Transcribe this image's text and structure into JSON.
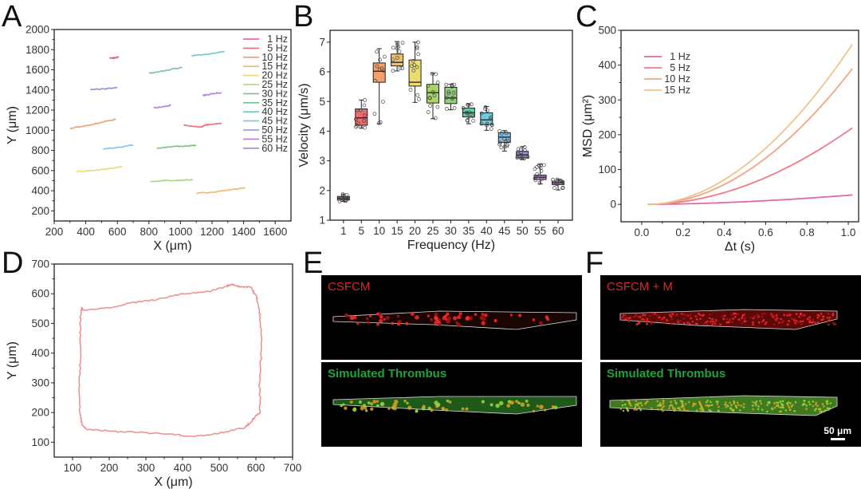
{
  "panels": {
    "A": "A",
    "B": "B",
    "C": "C",
    "D": "D",
    "E": "E",
    "F": "F"
  },
  "chart_data": [
    {
      "id": "A",
      "type": "line",
      "title": "",
      "xlabel": "X (μm)",
      "ylabel": "Y (μm)",
      "xlim": [
        200,
        1700
      ],
      "ylim": [
        100,
        2000
      ],
      "xticks": [
        200,
        400,
        600,
        800,
        1000,
        1200,
        1400,
        1600
      ],
      "yticks": [
        200,
        400,
        600,
        800,
        1000,
        1200,
        1400,
        1600,
        1800,
        2000
      ],
      "legend_position": "top-right",
      "series": [
        {
          "name": "1 Hz",
          "color": "#e0559a",
          "points": [
            [
              550,
              1715
            ],
            [
              580,
              1718
            ],
            [
              610,
              1728
            ]
          ]
        },
        {
          "name": "5 Hz",
          "color": "#ef6f79",
          "points": [
            [
              1020,
              1050
            ],
            [
              1080,
              1040
            ],
            [
              1130,
              1030
            ],
            [
              1150,
              1050
            ],
            [
              1200,
              1060
            ],
            [
              1260,
              1065
            ]
          ]
        },
        {
          "name": "10 Hz",
          "color": "#f09c6d",
          "points": [
            [
              300,
              1020
            ],
            [
              400,
              1045
            ],
            [
              500,
              1080
            ],
            [
              590,
              1110
            ]
          ]
        },
        {
          "name": "15 Hz",
          "color": "#f0b86a",
          "points": [
            [
              1100,
              375
            ],
            [
              1200,
              385
            ],
            [
              1300,
              405
            ],
            [
              1410,
              430
            ]
          ]
        },
        {
          "name": "20 Hz",
          "color": "#e7d978",
          "points": [
            [
              340,
              590
            ],
            [
              450,
              600
            ],
            [
              550,
              620
            ],
            [
              630,
              640
            ]
          ]
        },
        {
          "name": "25 Hz",
          "color": "#a8d67c",
          "points": [
            [
              810,
              490
            ],
            [
              900,
              500
            ],
            [
              1000,
              505
            ],
            [
              1080,
              510
            ]
          ]
        },
        {
          "name": "30 Hz",
          "color": "#7dc47a",
          "points": [
            [
              850,
              820
            ],
            [
              950,
              840
            ],
            [
              1050,
              845
            ],
            [
              1100,
              850
            ]
          ]
        },
        {
          "name": "35 Hz",
          "color": "#6cc4a3",
          "points": [
            [
              800,
              1565
            ],
            [
              900,
              1590
            ],
            [
              1010,
              1625
            ]
          ]
        },
        {
          "name": "40 Hz",
          "color": "#6ac7d1",
          "points": [
            [
              1070,
              1740
            ],
            [
              1170,
              1755
            ],
            [
              1280,
              1780
            ]
          ]
        },
        {
          "name": "45 Hz",
          "color": "#7fc2ea",
          "points": [
            [
              510,
              815
            ],
            [
              600,
              830
            ],
            [
              700,
              855
            ]
          ]
        },
        {
          "name": "50 Hz",
          "color": "#8b93d1",
          "points": [
            [
              430,
              1405
            ],
            [
              520,
              1410
            ],
            [
              600,
              1425
            ]
          ]
        },
        {
          "name": "55 Hz",
          "color": "#b57ed6",
          "points": [
            [
              830,
              1225
            ],
            [
              900,
              1235
            ],
            [
              940,
              1250
            ]
          ]
        },
        {
          "name": "60 Hz",
          "color": "#b57ed6",
          "points": [
            [
              1140,
              1345
            ],
            [
              1200,
              1360
            ],
            [
              1260,
              1375
            ]
          ]
        }
      ]
    },
    {
      "id": "B",
      "type": "box",
      "xlabel": "Frequency (Hz)",
      "ylabel": "Velocity (μm/s)",
      "ylim": [
        1,
        7.4
      ],
      "yticks": [
        1,
        2,
        3,
        4,
        5,
        6,
        7
      ],
      "categories": [
        "1",
        "5",
        "10",
        "15",
        "20",
        "25",
        "30",
        "35",
        "40",
        "45",
        "50",
        "55",
        "60"
      ],
      "boxes": [
        {
          "q1": 1.68,
          "median": 1.74,
          "q3": 1.8,
          "min": 1.63,
          "max": 1.88,
          "color": "#d9607a"
        },
        {
          "q1": 4.2,
          "median": 4.45,
          "q3": 4.75,
          "min": 4.1,
          "max": 5.05,
          "color": "#ee6a6e"
        },
        {
          "q1": 5.65,
          "median": 6.02,
          "q3": 6.3,
          "min": 4.25,
          "max": 6.78,
          "color": "#f4a06a"
        },
        {
          "q1": 6.2,
          "median": 6.32,
          "q3": 6.6,
          "min": 6.03,
          "max": 7.02,
          "color": "#f2bf6e"
        },
        {
          "q1": 5.52,
          "median": 5.65,
          "q3": 6.4,
          "min": 4.97,
          "max": 7.0,
          "color": "#eddc72"
        },
        {
          "q1": 4.95,
          "median": 5.3,
          "q3": 5.58,
          "min": 4.42,
          "max": 5.95,
          "color": "#a8d46c"
        },
        {
          "q1": 4.93,
          "median": 5.12,
          "q3": 5.48,
          "min": 4.72,
          "max": 5.58,
          "color": "#8ed27a"
        },
        {
          "q1": 4.48,
          "median": 4.62,
          "q3": 4.78,
          "min": 4.25,
          "max": 4.92,
          "color": "#6ccaa2"
        },
        {
          "q1": 4.22,
          "median": 4.38,
          "q3": 4.62,
          "min": 4.03,
          "max": 4.83,
          "color": "#6ecbd8"
        },
        {
          "q1": 3.62,
          "median": 3.8,
          "q3": 3.95,
          "min": 3.33,
          "max": 4.02,
          "color": "#7fbde6"
        },
        {
          "q1": 3.1,
          "median": 3.2,
          "q3": 3.32,
          "min": 3.05,
          "max": 3.48,
          "color": "#8c95d3"
        },
        {
          "q1": 2.37,
          "median": 2.45,
          "q3": 2.52,
          "min": 2.22,
          "max": 2.88,
          "color": "#b982d6"
        },
        {
          "q1": 2.2,
          "median": 2.26,
          "q3": 2.32,
          "min": 2.02,
          "max": 2.38,
          "color": "#c686d6"
        }
      ]
    },
    {
      "id": "C",
      "type": "line",
      "xlabel": "Δt  (s)",
      "ylabel": "MSD (μm²)",
      "xlim": [
        -0.1,
        1.05
      ],
      "ylim": [
        -50,
        500
      ],
      "xticks": [
        0.0,
        0.2,
        0.4,
        0.6,
        0.8,
        1.0
      ],
      "xtick_labels": [
        "0.0",
        "0.2",
        "0.4",
        "0.6",
        "0.8",
        "1.0"
      ],
      "yticks": [
        0,
        100,
        200,
        300,
        400,
        500
      ],
      "legend_position": "top-left",
      "x_range": [
        0.03,
        1.02
      ],
      "series": [
        {
          "name": "1 Hz",
          "color": "#e06aa8",
          "end_value": 27,
          "exponent": 1.7
        },
        {
          "name": "5 Hz",
          "color": "#ee7a8a",
          "end_value": 220,
          "exponent": 1.9
        },
        {
          "name": "10 Hz",
          "color": "#f2a484",
          "end_value": 390,
          "exponent": 1.95
        },
        {
          "name": "15 Hz",
          "color": "#eec48c",
          "end_value": 460,
          "exponent": 1.9
        }
      ]
    },
    {
      "id": "D",
      "type": "line",
      "xlabel": "X (μm)",
      "ylabel": "Y (μm)",
      "xlim": [
        50,
        700
      ],
      "ylim": [
        50,
        700
      ],
      "xticks": [
        100,
        200,
        300,
        400,
        500,
        600,
        700
      ],
      "yticks": [
        100,
        200,
        300,
        400,
        500,
        600,
        700
      ],
      "series": [
        {
          "name": "trajectory",
          "color": "#f08c8c",
          "points": [
            [
              125,
              555
            ],
            [
              128,
              545
            ],
            [
              200,
              552
            ],
            [
              260,
              570
            ],
            [
              330,
              580
            ],
            [
              400,
              600
            ],
            [
              460,
              605
            ],
            [
              520,
              625
            ],
            [
              535,
              632
            ],
            [
              560,
              622
            ],
            [
              585,
              622
            ],
            [
              600,
              595
            ],
            [
              605,
              570
            ],
            [
              612,
              520
            ],
            [
              615,
              420
            ],
            [
              610,
              300
            ],
            [
              612,
              200
            ],
            [
              600,
              190
            ],
            [
              585,
              165
            ],
            [
              570,
              150
            ],
            [
              520,
              135
            ],
            [
              470,
              125
            ],
            [
              420,
              120
            ],
            [
              360,
              128
            ],
            [
              280,
              133
            ],
            [
              200,
              138
            ],
            [
              140,
              142
            ],
            [
              125,
              160
            ],
            [
              120,
              200
            ],
            [
              118,
              300
            ],
            [
              122,
              400
            ],
            [
              120,
              500
            ],
            [
              125,
              555
            ]
          ]
        }
      ]
    }
  ],
  "images": {
    "E": [
      {
        "label": "CSFCM",
        "label_color": "red",
        "fluor": "red"
      },
      {
        "label": "Simulated Thrombus",
        "label_color": "green",
        "fluor": "green"
      }
    ],
    "F": [
      {
        "label": "CSFCM + M",
        "label_color": "red",
        "fluor": "red-dense"
      },
      {
        "label": "Simulated Thrombus",
        "label_color": "green",
        "fluor": "green-dense"
      }
    ],
    "scale_bar": "50 μm"
  }
}
